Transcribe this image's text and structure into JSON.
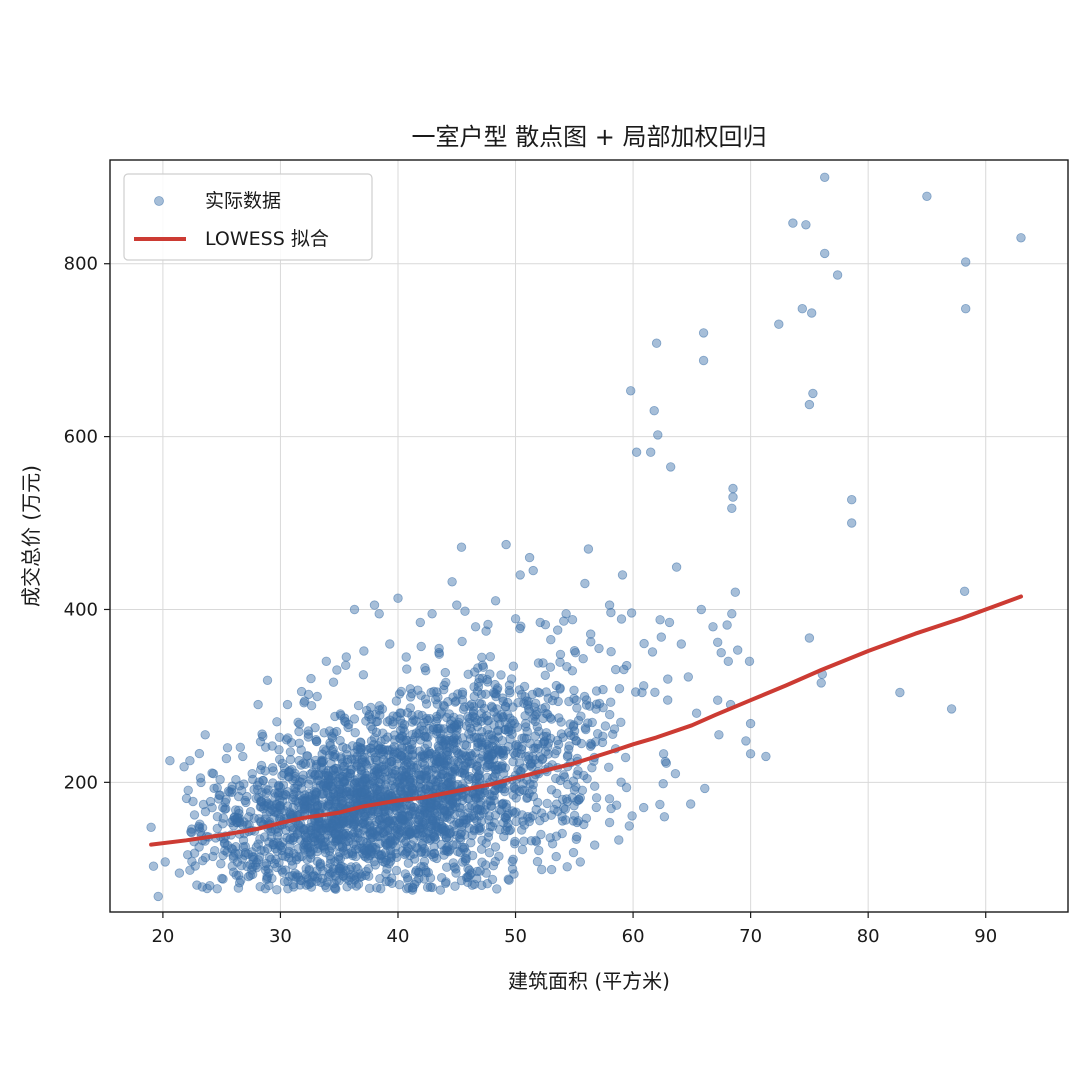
{
  "chart_data": {
    "type": "scatter",
    "title": "一室户型 散点图 + 局部加权回归",
    "xlabel": "建筑面积 (平方米)",
    "ylabel": "成交总价 (万元)",
    "xlim": [
      15.5,
      97
    ],
    "ylim": [
      50,
      920
    ],
    "xticks": [
      20,
      30,
      40,
      50,
      60,
      70,
      80,
      90
    ],
    "yticks": [
      200,
      400,
      600,
      800
    ],
    "grid": true,
    "legend_position": "top-left",
    "colors": {
      "scatter": "#3a6fa8",
      "line": "#cc3b33"
    },
    "series": [
      {
        "name": "实际数据",
        "kind": "scatter",
        "dense_cluster_note_free": true,
        "points": [
          [
            19,
            148
          ],
          [
            19.2,
            103
          ],
          [
            19.6,
            68
          ],
          [
            20.2,
            108
          ],
          [
            20.6,
            225
          ],
          [
            21.4,
            95
          ],
          [
            21.8,
            218
          ],
          [
            22.3,
            225
          ],
          [
            22.7,
            118
          ],
          [
            23.2,
            205
          ],
          [
            23.6,
            255
          ],
          [
            24.3,
            210
          ],
          [
            24.8,
            185
          ],
          [
            25.5,
            240
          ],
          [
            26.1,
            160
          ],
          [
            26.8,
            230
          ],
          [
            27.6,
            210
          ],
          [
            28.1,
            290
          ],
          [
            28.9,
            318
          ],
          [
            29.7,
            270
          ],
          [
            30.6,
            290
          ],
          [
            31.8,
            305
          ],
          [
            32.6,
            320
          ],
          [
            33.9,
            340
          ],
          [
            34.8,
            330
          ],
          [
            35.6,
            345
          ],
          [
            36.3,
            400
          ],
          [
            37.1,
            352
          ],
          [
            38.0,
            405
          ],
          [
            38.4,
            395
          ],
          [
            39.3,
            360
          ],
          [
            40.0,
            413
          ],
          [
            40.7,
            345
          ],
          [
            41.9,
            385
          ],
          [
            42.9,
            395
          ],
          [
            43.5,
            355
          ],
          [
            44.6,
            432
          ],
          [
            45.0,
            405
          ],
          [
            45.4,
            472
          ],
          [
            45.7,
            398
          ],
          [
            46.6,
            380
          ],
          [
            47.5,
            375
          ],
          [
            48.3,
            410
          ],
          [
            49.2,
            475
          ],
          [
            50.4,
            440
          ],
          [
            51.2,
            460
          ],
          [
            51.5,
            445
          ],
          [
            52.1,
            385
          ],
          [
            53.0,
            365
          ],
          [
            54.3,
            395
          ],
          [
            55.1,
            350
          ],
          [
            55.9,
            430
          ],
          [
            56.2,
            470
          ],
          [
            57.1,
            355
          ],
          [
            58.0,
            405
          ],
          [
            59.1,
            440
          ],
          [
            59.8,
            653
          ],
          [
            60.3,
            582
          ],
          [
            61.5,
            582
          ],
          [
            61.8,
            630
          ],
          [
            62.0,
            708
          ],
          [
            62.1,
            602
          ],
          [
            63.2,
            565
          ],
          [
            63.7,
            449
          ],
          [
            62.3,
            388
          ],
          [
            63.1,
            385
          ],
          [
            62.4,
            368
          ],
          [
            64.1,
            360
          ],
          [
            64.7,
            322
          ],
          [
            65.4,
            280
          ],
          [
            65.8,
            400
          ],
          [
            66.0,
            720
          ],
          [
            66.0,
            688
          ],
          [
            66.8,
            380
          ],
          [
            67.2,
            362
          ],
          [
            67.5,
            350
          ],
          [
            68.0,
            382
          ],
          [
            68.1,
            340
          ],
          [
            68.4,
            395
          ],
          [
            68.5,
            540
          ],
          [
            68.5,
            530
          ],
          [
            68.4,
            517
          ],
          [
            68.7,
            420
          ],
          [
            68.9,
            353
          ],
          [
            69.9,
            340
          ],
          [
            67.2,
            295
          ],
          [
            68.3,
            290
          ],
          [
            69.6,
            248
          ],
          [
            70.0,
            268
          ],
          [
            70.0,
            233
          ],
          [
            71.3,
            230
          ],
          [
            67.3,
            255
          ],
          [
            66.1,
            193
          ],
          [
            64.9,
            175
          ],
          [
            63.6,
            210
          ],
          [
            72.4,
            730
          ],
          [
            73.6,
            847
          ],
          [
            74.4,
            748
          ],
          [
            74.7,
            845
          ],
          [
            75.0,
            637
          ],
          [
            75.2,
            743
          ],
          [
            75.3,
            650
          ],
          [
            75.0,
            367
          ],
          [
            76.1,
            325
          ],
          [
            76.0,
            315
          ],
          [
            76.3,
            812
          ],
          [
            76.3,
            900
          ],
          [
            77.4,
            787
          ],
          [
            78.6,
            527
          ],
          [
            78.6,
            500
          ],
          [
            82.7,
            304
          ],
          [
            85.0,
            878
          ],
          [
            87.1,
            285
          ],
          [
            88.3,
            802
          ],
          [
            88.3,
            748
          ],
          [
            88.2,
            421
          ],
          [
            93.0,
            830
          ]
        ]
      },
      {
        "name": "LOWESS 拟合",
        "kind": "line",
        "points": [
          [
            19,
            128
          ],
          [
            22,
            133
          ],
          [
            25,
            139
          ],
          [
            28,
            146
          ],
          [
            30,
            153
          ],
          [
            32,
            159
          ],
          [
            35,
            165
          ],
          [
            37,
            172
          ],
          [
            40,
            179
          ],
          [
            42,
            182
          ],
          [
            45,
            190
          ],
          [
            48,
            198
          ],
          [
            50,
            205
          ],
          [
            52,
            212
          ],
          [
            55,
            222
          ],
          [
            58,
            235
          ],
          [
            60,
            244
          ],
          [
            62,
            252
          ],
          [
            65,
            266
          ],
          [
            67,
            278
          ],
          [
            70,
            295
          ],
          [
            73,
            312
          ],
          [
            76,
            330
          ],
          [
            80,
            352
          ],
          [
            84,
            372
          ],
          [
            88,
            390
          ],
          [
            93,
            415
          ]
        ]
      }
    ]
  }
}
